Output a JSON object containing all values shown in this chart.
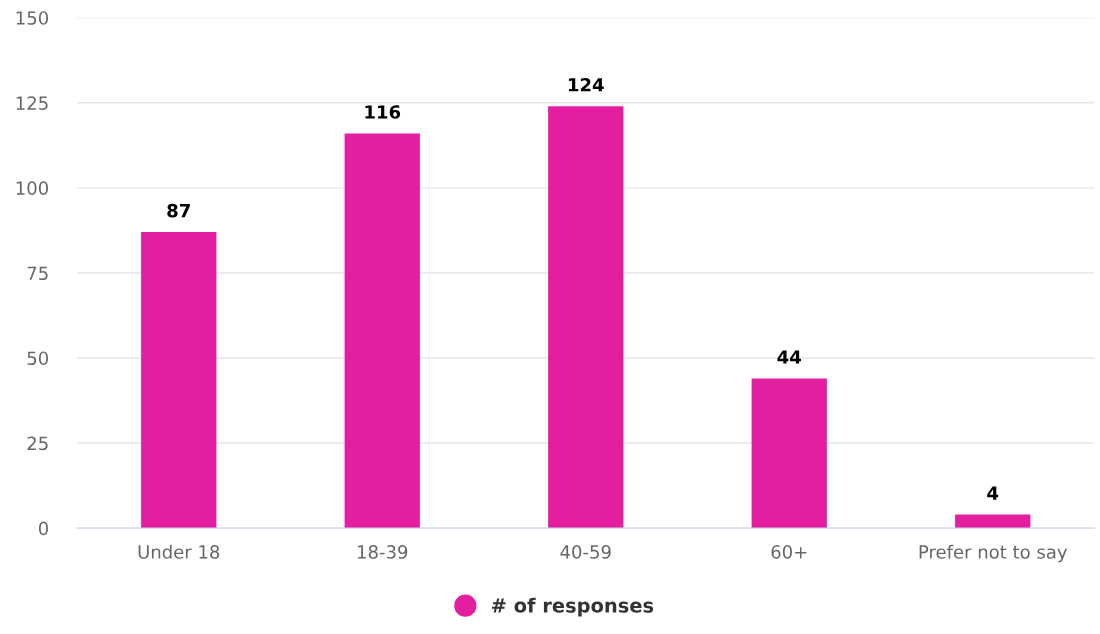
{
  "chart_data": {
    "type": "bar",
    "categories": [
      "Under 18",
      "18-39",
      "40-59",
      "60+",
      "Prefer not to say"
    ],
    "series": [
      {
        "name": "# of responses",
        "color": "#e31fa0",
        "values": [
          87,
          116,
          124,
          44,
          4
        ]
      }
    ],
    "ylim": [
      0,
      150
    ],
    "yticks": [
      0,
      25,
      50,
      75,
      100,
      125,
      150
    ],
    "grid": "y",
    "legend": "bottom",
    "marker": "circle",
    "data_labels": true
  }
}
